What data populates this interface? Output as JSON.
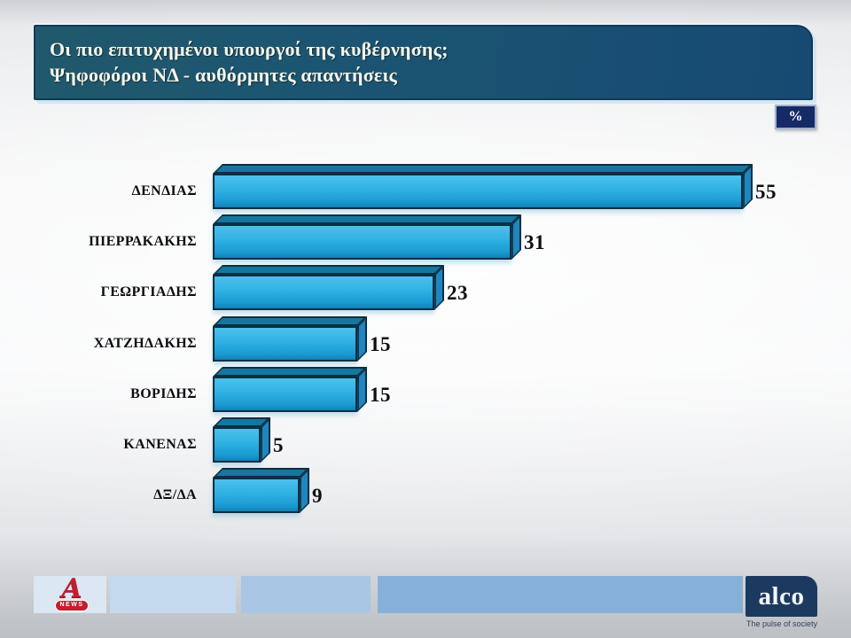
{
  "slide": {
    "title_line1": "Οι πιο επιτυχημένοι υπουργοί της κυβέρνησης;",
    "title_line2": "Ψηφοφόροι ΝΔ - αυθόρμητες απαντήσεις",
    "unit_badge": "%"
  },
  "chart_data": {
    "type": "bar",
    "orientation": "horizontal",
    "title": "Οι πιο επιτυχημένοι υπουργοί της κυβέρνησης; Ψηφοφόροι ΝΔ - αυθόρμητες απαντήσεις",
    "unit": "%",
    "categories": [
      "ΔΕΝΔΙΑΣ",
      "ΠΙΕΡΡΑΚΑΚΗΣ",
      "ΓΕΩΡΓΙΑΔΗΣ",
      "ΧΑΤΖΗΔΑΚΗΣ",
      "ΒΟΡΙΔΗΣ",
      "ΚΑΝΕΝΑΣ",
      "ΔΞ/ΔΑ"
    ],
    "values": [
      55,
      31,
      23,
      15,
      15,
      5,
      9
    ],
    "xlim": [
      0,
      60
    ],
    "grid": false,
    "axes_visible": false,
    "legend": "none",
    "bar_style": "3d",
    "colors": {
      "bar_front": "#2fb0e2",
      "bar_top": "#15779f",
      "bar_side": "#1f86c0",
      "bar_outline": "#0c2f42",
      "value_label": "#0d0d12"
    }
  },
  "footer": {
    "alpha_news": {
      "glyph": "A",
      "news_label": "NEWS",
      "brand_red": "#c31e2d"
    },
    "alco": {
      "logo_text": "alco",
      "tagline": "The pulse of society",
      "brand_navy": "#1c3a60"
    }
  },
  "colors": {
    "header_bg_left": "#20596c",
    "header_bg_right": "#174a72",
    "header_border": "#10395c",
    "badge_bg": "#152a66",
    "footer_blues": [
      "#dbe7f3",
      "#c5d9ee",
      "#a9c6e4",
      "#87b0d9"
    ]
  }
}
